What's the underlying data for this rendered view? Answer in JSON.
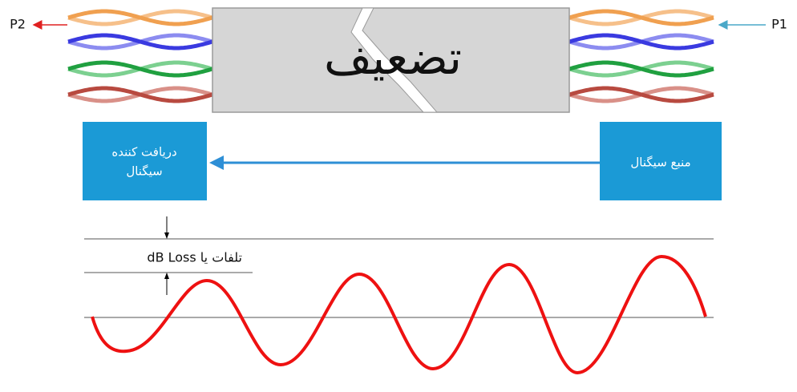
{
  "labels": {
    "p2": "P2",
    "p1": "P1",
    "attenuation": "تضعیف",
    "receiver_line1": "دریافت کننده",
    "receiver_line2": "سیگنال",
    "source": "منبع سیگنال",
    "loss": "تلفات یا dB Loss"
  }
}
